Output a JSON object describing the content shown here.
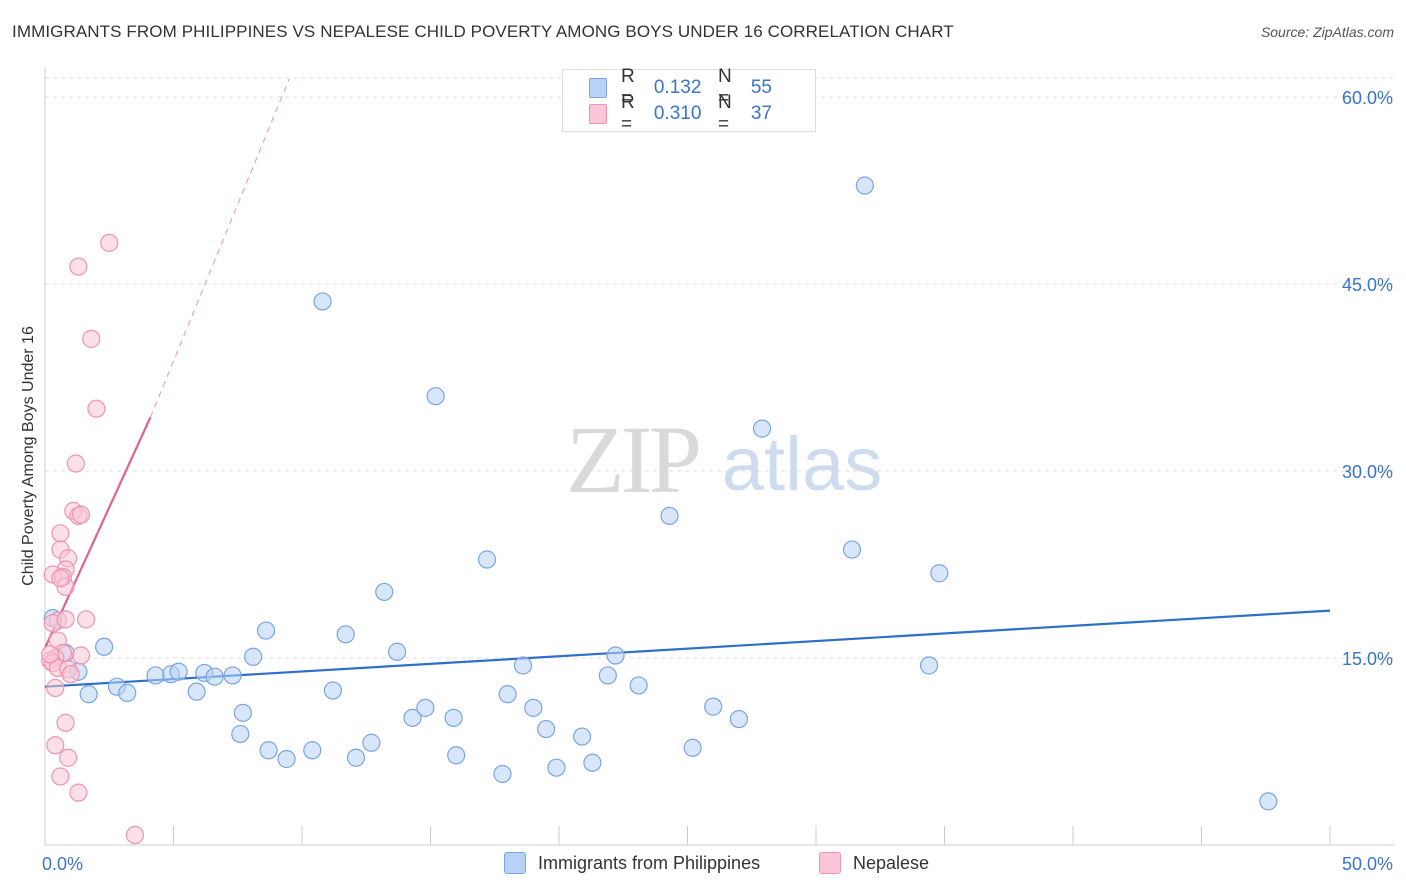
{
  "title": "IMMIGRANTS FROM PHILIPPINES VS NEPALESE CHILD POVERTY AMONG BOYS UNDER 16 CORRELATION CHART",
  "source": "Source: ZipAtlas.com",
  "watermark": {
    "zip": "ZIP",
    "atlas": "atlas"
  },
  "legend": {
    "rows": [
      {
        "r_label": "R =",
        "r_value": "0.132",
        "n_label": "N =",
        "n_value": "55"
      },
      {
        "r_label": "R =",
        "r_value": "0.310",
        "n_label": "N =",
        "n_value": "37"
      }
    ]
  },
  "colors": {
    "blue_fill": "#b8d2f5",
    "blue_stroke": "#7aa5e0",
    "blue_line": "#2d6fcb",
    "pink_fill": "#f8c6d6",
    "pink_stroke": "#ee93b1",
    "pink_line": "#e0638f",
    "axis_text": "#3a74c9",
    "grid": "#dddddd"
  },
  "chart_data": {
    "type": "scatter",
    "title": "IMMIGRANTS FROM PHILIPPINES VS NEPALESE CHILD POVERTY AMONG BOYS UNDER 16 CORRELATION CHART",
    "xlabel": "",
    "ylabel": "Child Poverty Among Boys Under 16",
    "xlim": [
      0,
      50
    ],
    "ylim": [
      0,
      60
    ],
    "x_tick_labels": [
      "0.0%",
      "50.0%"
    ],
    "y_ticks": [
      15,
      30,
      45,
      60
    ],
    "y_tick_labels": [
      "15.0%",
      "30.0%",
      "45.0%",
      "60.0%"
    ],
    "grid": true,
    "series": [
      {
        "name": "Immigrants from Philippines",
        "color": "blue",
        "r": 0.132,
        "n": 55,
        "trend": {
          "x": [
            0,
            50
          ],
          "y": [
            12.7,
            18.8
          ],
          "dashed_extension": false
        },
        "points": [
          [
            0.3,
            18.2
          ],
          [
            0.8,
            15.4
          ],
          [
            1.3,
            13.9
          ],
          [
            2.3,
            15.9
          ],
          [
            1.7,
            12.1
          ],
          [
            2.8,
            12.7
          ],
          [
            3.2,
            12.2
          ],
          [
            4.9,
            13.7
          ],
          [
            4.3,
            13.6
          ],
          [
            5.2,
            13.9
          ],
          [
            6.2,
            13.8
          ],
          [
            5.9,
            12.3
          ],
          [
            6.6,
            13.5
          ],
          [
            7.3,
            13.6
          ],
          [
            8.1,
            15.1
          ],
          [
            8.6,
            17.2
          ],
          [
            7.7,
            10.6
          ],
          [
            7.6,
            8.9
          ],
          [
            8.7,
            7.6
          ],
          [
            9.4,
            6.9
          ],
          [
            10.4,
            7.6
          ],
          [
            11.2,
            12.4
          ],
          [
            10.8,
            43.6
          ],
          [
            11.7,
            16.9
          ],
          [
            12.1,
            7.0
          ],
          [
            12.7,
            8.2
          ],
          [
            13.2,
            20.3
          ],
          [
            13.7,
            15.5
          ],
          [
            14.3,
            10.2
          ],
          [
            14.8,
            11.0
          ],
          [
            15.2,
            36.0
          ],
          [
            15.9,
            10.2
          ],
          [
            16.0,
            7.2
          ],
          [
            17.2,
            22.9
          ],
          [
            17.8,
            5.7
          ],
          [
            18.0,
            12.1
          ],
          [
            18.6,
            14.4
          ],
          [
            19.0,
            11.0
          ],
          [
            19.5,
            9.3
          ],
          [
            19.9,
            6.2
          ],
          [
            20.9,
            8.7
          ],
          [
            21.3,
            6.6
          ],
          [
            21.9,
            13.6
          ],
          [
            22.2,
            15.2
          ],
          [
            23.1,
            12.8
          ],
          [
            24.3,
            26.4
          ],
          [
            25.2,
            7.8
          ],
          [
            26.0,
            11.1
          ],
          [
            27.0,
            10.1
          ],
          [
            27.9,
            33.4
          ],
          [
            31.4,
            23.7
          ],
          [
            31.9,
            52.9
          ],
          [
            34.4,
            14.4
          ],
          [
            34.8,
            21.8
          ],
          [
            47.6,
            3.5
          ]
        ]
      },
      {
        "name": "Nepalese",
        "color": "pink",
        "r": 0.31,
        "n": 37,
        "trend": {
          "x": [
            0,
            4.1
          ],
          "y": [
            15.8,
            34.3
          ],
          "dashed_extension": {
            "x": [
              4.1,
              9.5
            ],
            "y": [
              34.3,
              60
            ]
          }
        },
        "points": [
          [
            2.5,
            48.3
          ],
          [
            1.3,
            46.4
          ],
          [
            1.8,
            40.6
          ],
          [
            2.0,
            35.0
          ],
          [
            1.2,
            30.6
          ],
          [
            1.1,
            26.8
          ],
          [
            1.3,
            26.4
          ],
          [
            1.4,
            26.5
          ],
          [
            0.6,
            25.0
          ],
          [
            0.6,
            23.7
          ],
          [
            0.9,
            23.0
          ],
          [
            0.8,
            22.1
          ],
          [
            0.3,
            21.7
          ],
          [
            0.7,
            21.5
          ],
          [
            0.8,
            20.7
          ],
          [
            0.5,
            18.0
          ],
          [
            1.6,
            18.1
          ],
          [
            0.3,
            17.8
          ],
          [
            0.5,
            16.4
          ],
          [
            0.7,
            15.4
          ],
          [
            0.4,
            15.0
          ],
          [
            1.4,
            15.2
          ],
          [
            0.2,
            14.8
          ],
          [
            0.3,
            14.6
          ],
          [
            0.5,
            14.2
          ],
          [
            0.9,
            14.1
          ],
          [
            1.0,
            13.7
          ],
          [
            0.4,
            12.6
          ],
          [
            0.8,
            9.8
          ],
          [
            0.4,
            8.0
          ],
          [
            0.9,
            7.0
          ],
          [
            0.6,
            5.5
          ],
          [
            1.3,
            4.2
          ],
          [
            3.5,
            0.8
          ],
          [
            0.2,
            15.3
          ],
          [
            0.6,
            21.4
          ],
          [
            0.8,
            18.1
          ]
        ]
      }
    ]
  },
  "bottom_legend": {
    "items": [
      {
        "label": "Immigrants from Philippines"
      },
      {
        "label": "Nepalese"
      }
    ]
  }
}
